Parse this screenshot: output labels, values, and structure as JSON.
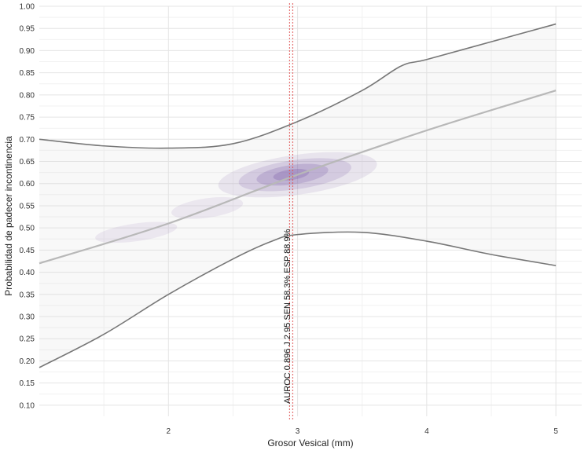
{
  "chart_data": {
    "type": "line",
    "xlabel": "Grosor Vesical (mm)",
    "ylabel": "Probabilidad de padecer incontinencia",
    "xlim": [
      1.0,
      5.2
    ],
    "ylim": [
      0.075,
      1.0
    ],
    "x_ticks": [
      2,
      3,
      4,
      5
    ],
    "x_tick_labels": [
      "2",
      "3",
      "4",
      "5"
    ],
    "y_ticks": [
      0.1,
      0.15,
      0.2,
      0.25,
      0.3,
      0.35,
      0.4,
      0.45,
      0.5,
      0.55,
      0.6,
      0.65,
      0.7,
      0.75,
      0.8,
      0.85,
      0.9,
      0.95,
      1.0
    ],
    "y_tick_labels": [
      "0.10",
      "0.15",
      "0.20",
      "0.25",
      "0.30",
      "0.35",
      "0.40",
      "0.45",
      "0.50",
      "0.55",
      "0.60",
      "0.65",
      "0.70",
      "0.75",
      "0.80",
      "0.85",
      "0.90",
      "0.95",
      "1.00"
    ],
    "grid": true,
    "series": [
      {
        "role": "fit",
        "color": "#b8b8b8",
        "x": [
          1.0,
          2.0,
          3.0,
          4.0,
          5.0
        ],
        "y": [
          0.42,
          0.51,
          0.62,
          0.72,
          0.81
        ]
      },
      {
        "role": "upper",
        "color": "#777777",
        "x": [
          1.0,
          1.5,
          2.0,
          2.5,
          3.0,
          3.5,
          3.8,
          4.0,
          4.5,
          5.0
        ],
        "y": [
          0.7,
          0.685,
          0.68,
          0.69,
          0.74,
          0.81,
          0.865,
          0.88,
          0.92,
          0.96
        ]
      },
      {
        "role": "lower",
        "color": "#777777",
        "x": [
          1.0,
          1.5,
          2.0,
          2.5,
          2.8,
          3.0,
          3.5,
          4.0,
          4.5,
          5.0
        ],
        "y": [
          0.185,
          0.26,
          0.35,
          0.43,
          0.47,
          0.485,
          0.49,
          0.47,
          0.44,
          0.415
        ]
      }
    ],
    "density": [
      {
        "x": 3.0,
        "y": 0.62,
        "rx": 0.62,
        "ry": 0.045,
        "opacity": 0.12
      },
      {
        "x": 2.98,
        "y": 0.62,
        "rx": 0.44,
        "ry": 0.033,
        "opacity": 0.18
      },
      {
        "x": 2.96,
        "y": 0.62,
        "rx": 0.28,
        "ry": 0.022,
        "opacity": 0.24
      },
      {
        "x": 2.95,
        "y": 0.62,
        "rx": 0.14,
        "ry": 0.012,
        "opacity": 0.3
      },
      {
        "x": 1.75,
        "y": 0.49,
        "rx": 0.32,
        "ry": 0.02,
        "opacity": 0.1
      },
      {
        "x": 2.3,
        "y": 0.545,
        "rx": 0.28,
        "ry": 0.022,
        "opacity": 0.1
      }
    ],
    "density_color": "#7b5aa8",
    "band_color": "#d8d8d8",
    "vline": {
      "x": 2.95,
      "color": "#e05555"
    },
    "annotation": "AUROC 0.896 J 2.95 SEN 58.3%  ESP 88.9%"
  }
}
